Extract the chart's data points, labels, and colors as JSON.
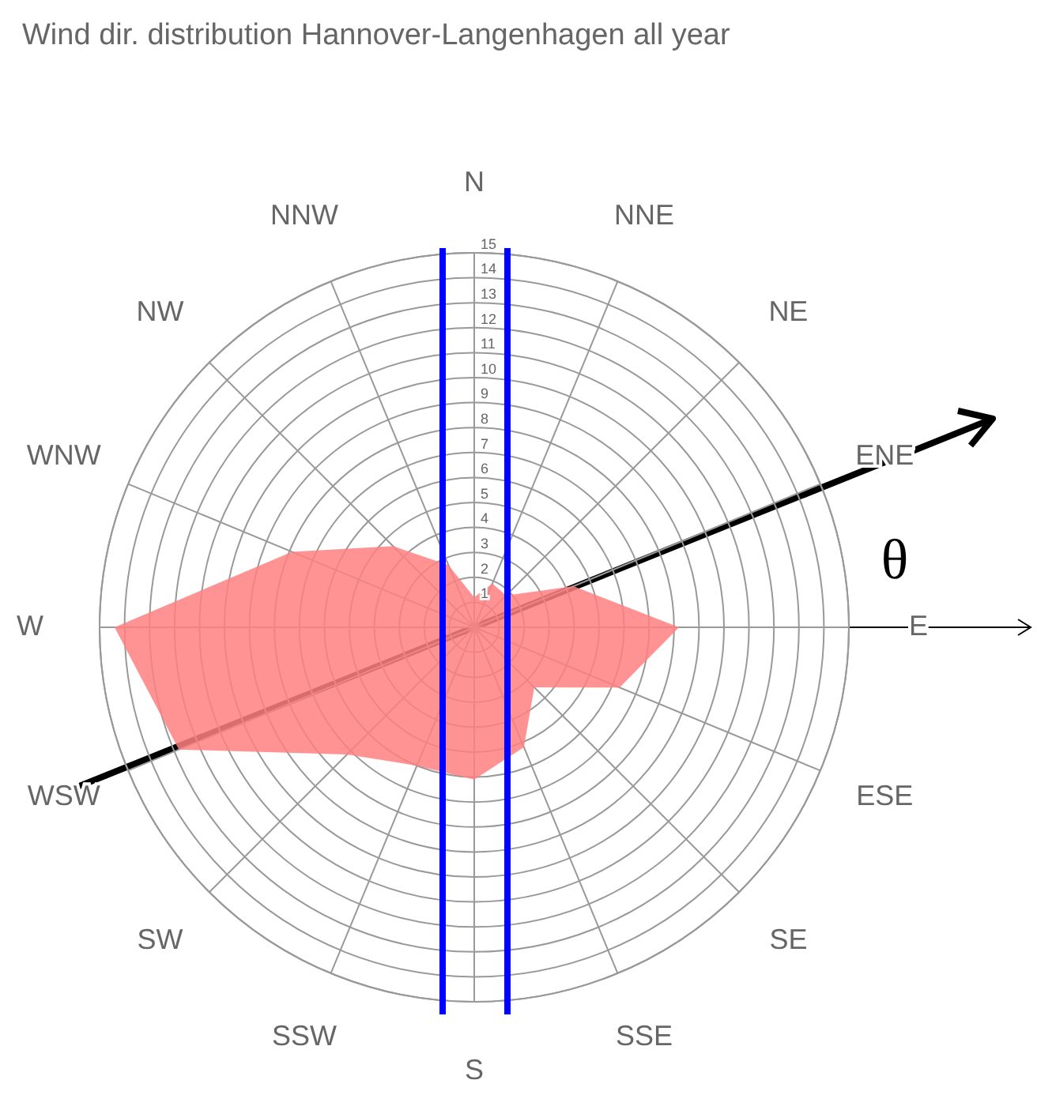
{
  "chart_data": {
    "type": "radar",
    "title": "Wind dir. distribution Hannover-Langenhagen all year",
    "categories": [
      "N",
      "NNE",
      "NE",
      "ENE",
      "E",
      "ESE",
      "SE",
      "SSE",
      "S",
      "SSW",
      "SW",
      "WSW",
      "W",
      "WNW",
      "NW",
      "NNW"
    ],
    "series": [
      {
        "color": "#ff8080",
        "values": [
          1.2,
          1.9,
          1.8,
          4.3,
          8.2,
          6.3,
          3.4,
          5.2,
          6.1,
          6.0,
          7.2,
          12.8,
          14.4,
          7.9,
          4.6,
          2.7
        ]
      }
    ],
    "ylim": [
      0,
      15
    ],
    "yticks": [
      1,
      2,
      3,
      4,
      5,
      6,
      7,
      8,
      9,
      10,
      11,
      12,
      13,
      14,
      15
    ],
    "grid": true,
    "annotations": [
      "θ"
    ]
  }
}
